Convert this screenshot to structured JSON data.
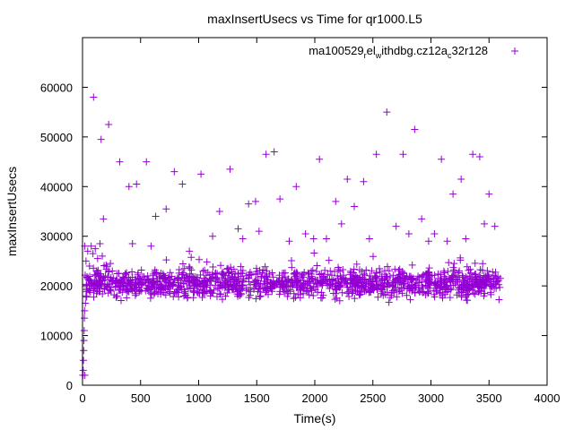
{
  "chart_data": {
    "type": "scatter",
    "title": "maxInsertUsecs vs Time for qr1000.L5",
    "xlabel": "Time(s)",
    "ylabel": "maxInsertUsecs",
    "xlim": [
      0,
      4000
    ],
    "ylim": [
      0,
      70000
    ],
    "x_ticks": [
      0,
      500,
      1000,
      1500,
      2000,
      2500,
      3000,
      3500,
      4000
    ],
    "y_ticks": [
      0,
      10000,
      20000,
      30000,
      40000,
      50000,
      60000
    ],
    "x_tick_labels": [
      "0",
      "500",
      "1000",
      "1500",
      "2000",
      "2500",
      "3000",
      "3500",
      "4000"
    ],
    "y_tick_labels": [
      "0",
      "10000",
      "20000",
      "30000",
      "40000",
      "50000",
      "60000"
    ],
    "marker": "+",
    "grid": false,
    "legend_position": "top-right",
    "series": [
      {
        "name": "ma100529_rel_withdbg.cz12a_c32r128",
        "legend_parts": [
          "ma100529",
          "r",
          "el",
          "w",
          "ithdbg.cz12a",
          "c",
          "32r128"
        ],
        "color": "#9400d3",
        "points": [
          [
            3,
            2000
          ],
          [
            6,
            3000
          ],
          [
            8,
            5000
          ],
          [
            10,
            7000
          ],
          [
            12,
            9000
          ],
          [
            14,
            11000
          ],
          [
            16,
            13500
          ],
          [
            18,
            15000
          ],
          [
            20,
            2000
          ],
          [
            25,
            16500
          ],
          [
            30,
            18000
          ],
          [
            40,
            19500
          ],
          [
            20,
            28000
          ],
          [
            30,
            25000
          ],
          [
            45,
            27000
          ],
          [
            60,
            24000
          ],
          [
            75,
            28000
          ],
          [
            90,
            26500
          ],
          [
            110,
            27500
          ],
          [
            130,
            25500
          ],
          [
            150,
            28500
          ],
          [
            170,
            26000
          ],
          [
            95,
            58000
          ],
          [
            160,
            49500
          ],
          [
            180,
            33500
          ],
          [
            225,
            52500
          ],
          [
            320,
            45000
          ],
          [
            400,
            40000
          ],
          [
            430,
            28500
          ],
          [
            465,
            40500
          ],
          [
            550,
            45000
          ],
          [
            590,
            28000
          ],
          [
            630,
            34000
          ],
          [
            720,
            35500
          ],
          [
            790,
            43000
          ],
          [
            860,
            40500
          ],
          [
            920,
            27000
          ],
          [
            1020,
            42500
          ],
          [
            1120,
            30000
          ],
          [
            1180,
            35000
          ],
          [
            1270,
            43500
          ],
          [
            1340,
            31500
          ],
          [
            1380,
            29500
          ],
          [
            1430,
            36500
          ],
          [
            1490,
            37000
          ],
          [
            1520,
            31000
          ],
          [
            1580,
            46500
          ],
          [
            1650,
            47000
          ],
          [
            1700,
            37500
          ],
          [
            1780,
            29000
          ],
          [
            1840,
            40000
          ],
          [
            1920,
            30500
          ],
          [
            1990,
            29500
          ],
          [
            2040,
            45500
          ],
          [
            2100,
            29500
          ],
          [
            2180,
            37000
          ],
          [
            2230,
            32500
          ],
          [
            2280,
            41500
          ],
          [
            2340,
            36000
          ],
          [
            2420,
            41000
          ],
          [
            2470,
            29500
          ],
          [
            2530,
            46500
          ],
          [
            2620,
            55000
          ],
          [
            2700,
            32000
          ],
          [
            2760,
            46500
          ],
          [
            2810,
            30500
          ],
          [
            2860,
            51500
          ],
          [
            2920,
            33500
          ],
          [
            2980,
            29000
          ],
          [
            3030,
            30500
          ],
          [
            3090,
            45500
          ],
          [
            3140,
            29000
          ],
          [
            3190,
            38500
          ],
          [
            3260,
            41500
          ],
          [
            3300,
            29500
          ],
          [
            3360,
            46500
          ],
          [
            3420,
            46000
          ],
          [
            3460,
            32500
          ],
          [
            3500,
            38500
          ],
          [
            3550,
            32000
          ]
        ]
      }
    ],
    "dense_band": {
      "x_start": 20,
      "x_end": 3600,
      "y_center": 20500,
      "y_spread": 2500,
      "point_count": 1400
    }
  }
}
